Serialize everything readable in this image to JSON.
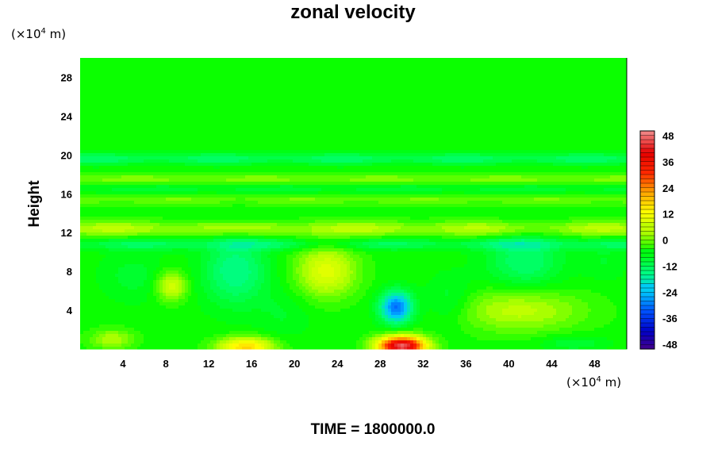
{
  "chart_data": {
    "type": "heatmap",
    "title": "zonal velocity",
    "ylabel": "Height",
    "xlabel": "",
    "y_unit": {
      "prefix": "(×10",
      "exp": "4",
      "suffix": " m)"
    },
    "x_unit": {
      "prefix": "(×10",
      "exp": "4",
      "suffix": " m)"
    },
    "footer": "TIME = 1800000.0",
    "xlim": [
      0,
      51
    ],
    "ylim": [
      0,
      30
    ],
    "x_ticks": [
      4,
      8,
      12,
      16,
      20,
      24,
      28,
      32,
      36,
      40,
      44,
      48
    ],
    "y_ticks": [
      4,
      8,
      12,
      16,
      20,
      24,
      28
    ],
    "colorbar": {
      "range": [
        -50,
        50
      ],
      "labels": [
        48,
        36,
        24,
        12,
        0,
        -12,
        -24,
        -36,
        -48
      ]
    },
    "background_value": -4,
    "features": [
      {
        "kind": "band",
        "y_center": 19.6,
        "y_width": 0.6,
        "value": -12
      },
      {
        "kind": "band",
        "y_center": 17.4,
        "y_width": 0.6,
        "value": 3
      },
      {
        "kind": "band",
        "y_center": 16.6,
        "y_width": 0.7,
        "value": -9
      },
      {
        "kind": "band",
        "y_center": 15.4,
        "y_width": 0.6,
        "value": 1
      },
      {
        "kind": "band",
        "y_center": 12.4,
        "y_width": 0.8,
        "value": 5
      },
      {
        "kind": "band",
        "y_center": 10.8,
        "y_width": 0.6,
        "value": -11
      },
      {
        "kind": "blob",
        "x": 30.0,
        "y": 0.3,
        "rx": 2.2,
        "ry": 1.0,
        "value": 48
      },
      {
        "kind": "blob",
        "x": 15.5,
        "y": 0.2,
        "rx": 2.6,
        "ry": 1.0,
        "value": 18
      },
      {
        "kind": "blob",
        "x": 29.5,
        "y": 4.3,
        "rx": 1.5,
        "ry": 1.6,
        "value": -30
      },
      {
        "kind": "blob",
        "x": 23.0,
        "y": 8.0,
        "rx": 2.8,
        "ry": 2.6,
        "value": 10
      },
      {
        "kind": "blob",
        "x": 8.5,
        "y": 6.5,
        "rx": 1.4,
        "ry": 1.5,
        "value": 9
      },
      {
        "kind": "blob",
        "x": 14.5,
        "y": 8.0,
        "rx": 3.0,
        "ry": 3.5,
        "value": -15
      },
      {
        "kind": "blob",
        "x": 41.5,
        "y": 9.0,
        "rx": 3.5,
        "ry": 2.8,
        "value": -13
      },
      {
        "kind": "blob",
        "x": 5.0,
        "y": 7.5,
        "rx": 3.0,
        "ry": 2.5,
        "value": -8
      },
      {
        "kind": "blob",
        "x": 41.0,
        "y": 4.0,
        "rx": 6.0,
        "ry": 2.2,
        "value": 6
      },
      {
        "kind": "blob",
        "x": 34.5,
        "y": 5.0,
        "rx": 2.2,
        "ry": 2.5,
        "value": -9
      },
      {
        "kind": "blob",
        "x": 19.0,
        "y": 3.5,
        "rx": 2.5,
        "ry": 2.5,
        "value": -7
      },
      {
        "kind": "blob",
        "x": 3.0,
        "y": 1.0,
        "rx": 2.0,
        "ry": 1.0,
        "value": 5
      },
      {
        "kind": "blob",
        "x": 49.0,
        "y": 9.0,
        "rx": 2.0,
        "ry": 2.0,
        "value": -7
      },
      {
        "kind": "blob",
        "x": 46.0,
        "y": 0.6,
        "rx": 3.0,
        "ry": 0.8,
        "value": -9
      }
    ]
  },
  "colors": {
    "palette": [
      "#4b0082",
      "#0000c8",
      "#0050ff",
      "#00c8ff",
      "#00ff7a",
      "#00ff00",
      "#b4ff00",
      "#ffff00",
      "#ffa500",
      "#ff2800",
      "#e60000",
      "#f08080"
    ]
  }
}
